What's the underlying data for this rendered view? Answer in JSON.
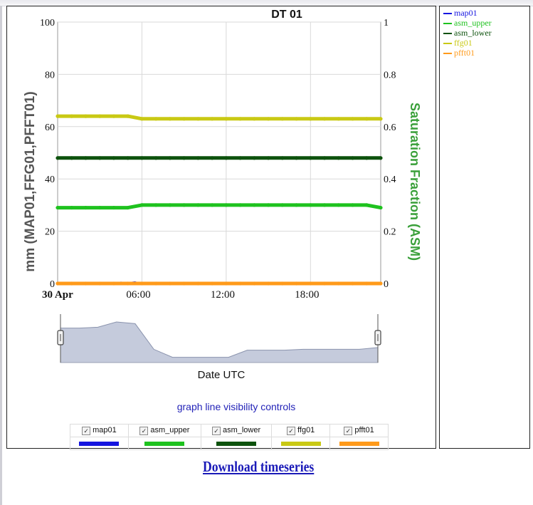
{
  "chart_data": {
    "type": "line",
    "title": "DT 01",
    "xlabel": "Date UTC",
    "ylabel_left": "mm (MAP01,FFG01,PFFT01)",
    "ylabel_right": "Saturation Fraction (ASM)",
    "x_ticks": [
      "30 Apr",
      "06:00",
      "12:00",
      "18:00"
    ],
    "y_left_ticks": [
      "0",
      "20",
      "40",
      "60",
      "80",
      "100"
    ],
    "y_right_ticks": [
      "0",
      "0.2",
      "0.4",
      "0.6",
      "0.8",
      "1"
    ],
    "ylim_left": [
      0,
      100
    ],
    "ylim_right": [
      0,
      1
    ],
    "x_unit": "hours since 30 Apr 00:00 UTC",
    "x_range": [
      0,
      23
    ],
    "grid": true,
    "legend_position": "right",
    "series": [
      {
        "name": "map01",
        "axis": "left",
        "color": "#1515e0",
        "x": [
          0,
          4,
          4.5,
          5,
          5.5,
          6,
          23
        ],
        "y": [
          0,
          0,
          0.5,
          0.3,
          0.6,
          0,
          0
        ]
      },
      {
        "name": "asm_upper",
        "axis": "right",
        "color": "#1ec21e",
        "x": [
          0,
          5,
          6,
          22,
          23
        ],
        "y": [
          0.29,
          0.29,
          0.3,
          0.3,
          0.29
        ]
      },
      {
        "name": "asm_lower",
        "axis": "right",
        "color": "#0d520d",
        "x": [
          0,
          23
        ],
        "y": [
          0.48,
          0.48
        ]
      },
      {
        "name": "ffg01",
        "axis": "left",
        "color": "#c9c914",
        "x": [
          0,
          5,
          6,
          23
        ],
        "y": [
          64,
          64,
          63,
          63
        ]
      },
      {
        "name": "pfft01",
        "axis": "left",
        "color": "#ff9a1a",
        "x": [
          0,
          23
        ],
        "y": [
          0,
          0
        ]
      }
    ],
    "navigator_profile": [
      0.78,
      0.78,
      0.8,
      0.92,
      0.88,
      0.3,
      0.12,
      0.12,
      0.12,
      0.12,
      0.28,
      0.28,
      0.28,
      0.3,
      0.3,
      0.3,
      0.3,
      0.34
    ]
  },
  "legend": {
    "items": [
      {
        "label": "map01",
        "color": "#1515e0"
      },
      {
        "label": "asm_upper",
        "color": "#1ec21e"
      },
      {
        "label": "asm_lower",
        "color": "#0d520d"
      },
      {
        "label": "ffg01",
        "color": "#c9c914"
      },
      {
        "label": "pfft01",
        "color": "#ff9a1a"
      }
    ]
  },
  "controls": {
    "title": "graph line visibility controls",
    "checkboxes": [
      {
        "label": "map01",
        "checked": true,
        "color": "#1515e0"
      },
      {
        "label": "asm_upper",
        "checked": true,
        "color": "#1ec21e"
      },
      {
        "label": "asm_lower",
        "checked": true,
        "color": "#0d520d"
      },
      {
        "label": "ffg01",
        "checked": true,
        "color": "#c9c914"
      },
      {
        "label": "pfft01",
        "checked": true,
        "color": "#ff9a1a"
      }
    ]
  },
  "download_link": "Download timeseries"
}
